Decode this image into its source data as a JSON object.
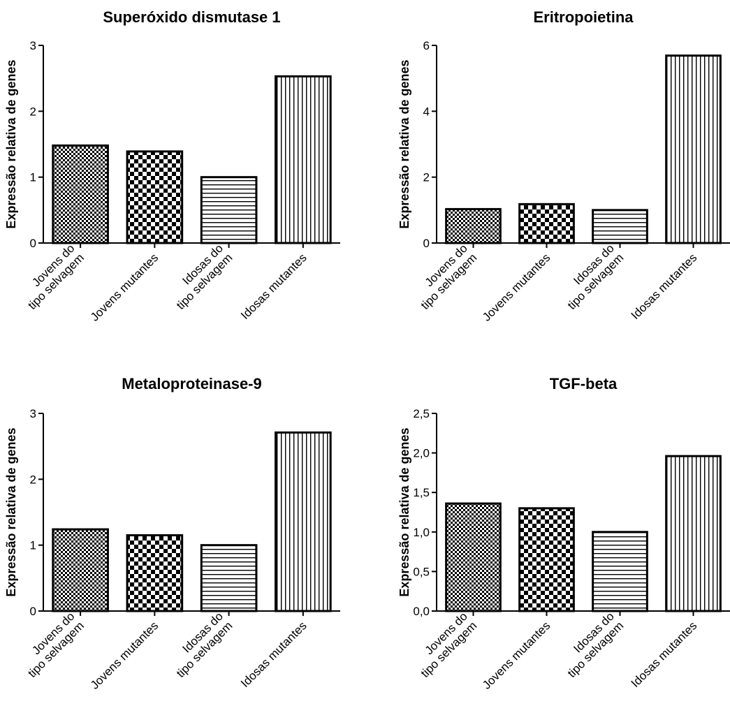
{
  "categories": [
    "Jovens do\ntipo selvagem",
    "Jovens mutantes",
    "Idosas do\ntipo selvagem",
    "Idosas mutantes"
  ],
  "patterns": [
    "fine-checker",
    "coarse-checker",
    "horizontal-lines",
    "vertical-lines"
  ],
  "chart_data": [
    {
      "type": "bar",
      "title": "Superóxido dismutase 1",
      "ylabel": "Expressão relativa de genes",
      "categories": [
        "Jovens do\ntipo selvagem",
        "Jovens mutantes",
        "Idosas do\ntipo selvagem",
        "Idosas mutantes"
      ],
      "values": [
        1.48,
        1.39,
        1.0,
        2.53
      ],
      "ylim": [
        0,
        3
      ],
      "yticks": [
        "0",
        "1",
        "2",
        "3"
      ]
    },
    {
      "type": "bar",
      "title": "Eritropoietina",
      "ylabel": "Expressão relativa de genes",
      "categories": [
        "Jovens do\ntipo selvagem",
        "Jovens mutantes",
        "Idosas do\ntipo selvagem",
        "Idosas mutantes"
      ],
      "values": [
        1.03,
        1.18,
        1.0,
        5.69
      ],
      "ylim": [
        0,
        6
      ],
      "yticks": [
        "0",
        "2",
        "4",
        "6"
      ]
    },
    {
      "type": "bar",
      "title": "Metaloproteinase-9",
      "ylabel": "Expressão relativa de genes",
      "categories": [
        "Jovens do\ntipo selvagem",
        "Jovens mutantes",
        "Idosas do\ntipo selvagem",
        "Idosas mutantes"
      ],
      "values": [
        1.24,
        1.15,
        1.0,
        2.71
      ],
      "ylim": [
        0,
        3
      ],
      "yticks": [
        "0",
        "1",
        "2",
        "3"
      ]
    },
    {
      "type": "bar",
      "title": "TGF-beta",
      "ylabel": "Expressão relativa de genes",
      "categories": [
        "Jovens do\ntipo selvagem",
        "Jovens mutantes",
        "Idosas do\ntipo selvagem",
        "Idosas mutantes"
      ],
      "values": [
        1.36,
        1.3,
        1.0,
        1.96
      ],
      "ylim": [
        0,
        2.5
      ],
      "yticks": [
        "0,0",
        "0,5",
        "1,0",
        "1,5",
        "2,0",
        "2,5"
      ]
    }
  ]
}
